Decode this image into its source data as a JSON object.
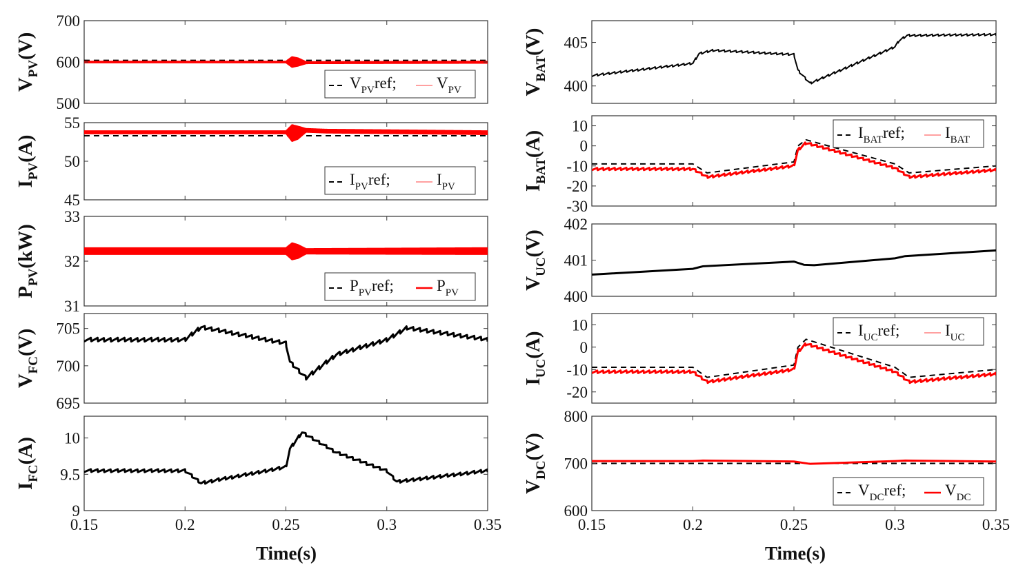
{
  "figure": {
    "x_axis_label": "Time(s)",
    "x_tick_labels": [
      "0.15",
      "0.2",
      "0.25",
      "0.3",
      "0.35"
    ],
    "x_ticks": [
      0.15,
      0.2,
      0.25,
      0.3,
      0.35
    ],
    "xlim": [
      0.15,
      0.35
    ]
  },
  "colors": {
    "reference": "#000000",
    "measured": "#ff0000",
    "signal": "#000000"
  },
  "chart_data": [
    {
      "id": "vpv",
      "type": "line",
      "column": "left",
      "ylabel": {
        "main": "V",
        "sub": "PV",
        "unit": "(V)"
      },
      "ylim": [
        500,
        700
      ],
      "yticks": [
        500,
        600,
        700
      ],
      "legend": {
        "placement": "bottom-right",
        "items": [
          {
            "main": "V",
            "sub": "PV",
            "suffix": "ref;",
            "style": "dashed",
            "color": "#000000"
          },
          {
            "main": "V",
            "sub": "PV",
            "suffix": "",
            "style": "thin",
            "color": "#ff0000"
          }
        ]
      },
      "series": [
        {
          "name": "VPVref",
          "style": "dashed",
          "color": "#000000",
          "width": 2,
          "x": [
            0.15,
            0.35
          ],
          "y": [
            604,
            604
          ]
        },
        {
          "name": "VPV",
          "style": "band",
          "color": "#ff0000",
          "x": [
            0.15,
            0.25,
            0.253,
            0.256,
            0.26,
            0.35
          ],
          "ylo": [
            597,
            597,
            586,
            589,
            595,
            596
          ],
          "yhi": [
            603,
            603,
            614,
            611,
            602,
            603
          ]
        }
      ]
    },
    {
      "id": "ipv",
      "type": "line",
      "column": "left",
      "ylabel": {
        "main": "I",
        "sub": "PV",
        "unit": "(A)"
      },
      "ylim": [
        45,
        55
      ],
      "yticks": [
        45,
        50,
        55
      ],
      "legend": {
        "placement": "bottom-right",
        "items": [
          {
            "main": "I",
            "sub": "PV",
            "suffix": "ref;",
            "style": "dashed",
            "color": "#000000"
          },
          {
            "main": "I",
            "sub": "PV",
            "suffix": "",
            "style": "thin",
            "color": "#ff0000"
          }
        ]
      },
      "series": [
        {
          "name": "IPVref",
          "style": "dashed",
          "color": "#000000",
          "width": 2,
          "x": [
            0.15,
            0.35
          ],
          "y": [
            53.3,
            53.3
          ]
        },
        {
          "name": "IPV",
          "style": "band",
          "color": "#ff0000",
          "x": [
            0.15,
            0.25,
            0.253,
            0.256,
            0.26,
            0.27,
            0.35
          ],
          "ylo": [
            53.5,
            53.5,
            52.5,
            52.8,
            53.7,
            53.6,
            53.4
          ],
          "yhi": [
            54.0,
            54.0,
            54.8,
            54.6,
            54.3,
            54.2,
            54.0
          ]
        }
      ]
    },
    {
      "id": "ppv",
      "type": "line",
      "column": "left",
      "ylabel": {
        "main": "P",
        "sub": "PV",
        "unit": "(kW)"
      },
      "ylim": [
        31,
        33
      ],
      "yticks": [
        31,
        32,
        33
      ],
      "legend": {
        "placement": "bottom-right",
        "items": [
          {
            "main": "P",
            "sub": "PV",
            "suffix": "ref;",
            "style": "dashed",
            "color": "#000000"
          },
          {
            "main": "P",
            "sub": "PV",
            "suffix": "",
            "style": "solid",
            "color": "#ff0000"
          }
        ]
      },
      "series": [
        {
          "name": "PPVref",
          "style": "dashed",
          "color": "#000000",
          "width": 2.5,
          "x": [
            0.15,
            0.35
          ],
          "y": [
            32.22,
            32.22
          ]
        },
        {
          "name": "PPV",
          "style": "band",
          "color": "#ff0000",
          "x": [
            0.15,
            0.25,
            0.253,
            0.256,
            0.26,
            0.35
          ],
          "ylo": [
            32.14,
            32.14,
            32.02,
            32.05,
            32.15,
            32.14
          ],
          "yhi": [
            32.31,
            32.31,
            32.42,
            32.38,
            32.29,
            32.31
          ]
        }
      ]
    },
    {
      "id": "vfc",
      "type": "line",
      "column": "left",
      "ylabel": {
        "main": "V",
        "sub": "FC",
        "unit": "(V)"
      },
      "ylim": [
        695,
        707
      ],
      "yticks": [
        695,
        700,
        705
      ],
      "legend": null,
      "series": [
        {
          "name": "VFC",
          "style": "ripple",
          "color": "#000000",
          "width": 3,
          "ripple": 0.25,
          "cycles": 60,
          "x": [
            0.15,
            0.2,
            0.208,
            0.25,
            0.252,
            0.26,
            0.275,
            0.3,
            0.31,
            0.35
          ],
          "y": [
            703.5,
            703.5,
            705.2,
            703.0,
            700.5,
            698.4,
            701.5,
            703.5,
            705.1,
            703.5
          ]
        }
      ]
    },
    {
      "id": "ifc",
      "type": "line",
      "column": "left",
      "ylabel": {
        "main": "I",
        "sub": "FC",
        "unit": "(A)"
      },
      "ylim": [
        9,
        10.3
      ],
      "yticks": [
        9,
        9.5,
        10
      ],
      "legend": null,
      "series": [
        {
          "name": "IFC",
          "style": "ripple",
          "color": "#000000",
          "width": 3,
          "ripple": 0.02,
          "cycles": 60,
          "x": [
            0.15,
            0.2,
            0.208,
            0.25,
            0.252,
            0.258,
            0.275,
            0.3,
            0.305,
            0.35
          ],
          "y": [
            9.55,
            9.55,
            9.38,
            9.6,
            9.85,
            10.08,
            9.8,
            9.55,
            9.4,
            9.55
          ]
        }
      ]
    },
    {
      "id": "vbat",
      "type": "line",
      "column": "right",
      "ylabel": {
        "main": "V",
        "sub": "BAT",
        "unit": "(V)"
      },
      "ylim": [
        398,
        407.5
      ],
      "yticks": [
        400,
        405
      ],
      "legend": null,
      "series": [
        {
          "name": "VBAT",
          "style": "ripple",
          "color": "#000000",
          "width": 2,
          "ripple": 0.12,
          "cycles": 70,
          "x": [
            0.15,
            0.2,
            0.203,
            0.21,
            0.25,
            0.252,
            0.258,
            0.3,
            0.302,
            0.306,
            0.35
          ],
          "y": [
            401.2,
            402.6,
            403.7,
            404.1,
            403.6,
            401.8,
            400.3,
            404.5,
            405.2,
            405.8,
            405.9
          ]
        }
      ]
    },
    {
      "id": "ibat",
      "type": "line",
      "column": "right",
      "ylabel": {
        "main": "I",
        "sub": "BAT",
        "unit": "(A)"
      },
      "ylim": [
        -30,
        15
      ],
      "yticks": [
        -30,
        -20,
        -10,
        0,
        10
      ],
      "legend": {
        "placement": "top-right",
        "items": [
          {
            "main": "I",
            "sub": "BAT",
            "suffix": "ref;",
            "style": "dashed",
            "color": "#000000"
          },
          {
            "main": "I",
            "sub": "BAT",
            "suffix": "",
            "style": "thin",
            "color": "#ff0000"
          }
        ]
      },
      "series": [
        {
          "name": "IBATref",
          "style": "dashed",
          "color": "#000000",
          "width": 2,
          "x": [
            0.15,
            0.2,
            0.207,
            0.25,
            0.252,
            0.256,
            0.3,
            0.307,
            0.35
          ],
          "y": [
            -9,
            -9,
            -13.5,
            -8,
            0,
            3,
            -9,
            -13.5,
            -10
          ]
        },
        {
          "name": "IBAT",
          "style": "ripple",
          "color": "#ff0000",
          "width": 3,
          "ripple": 0.6,
          "cycles": 70,
          "x": [
            0.15,
            0.2,
            0.207,
            0.25,
            0.252,
            0.256,
            0.3,
            0.307,
            0.35
          ],
          "y": [
            -11.5,
            -11.5,
            -15.5,
            -10,
            -2,
            1.5,
            -11,
            -15.5,
            -12
          ]
        }
      ]
    },
    {
      "id": "vuc",
      "type": "line",
      "column": "right",
      "ylabel": {
        "main": "V",
        "sub": "UC",
        "unit": "(V)"
      },
      "ylim": [
        400,
        402
      ],
      "yticks": [
        400,
        401,
        402
      ],
      "legend": null,
      "series": [
        {
          "name": "VUC",
          "style": "line",
          "color": "#000000",
          "width": 3,
          "x": [
            0.15,
            0.2,
            0.205,
            0.25,
            0.255,
            0.26,
            0.3,
            0.305,
            0.35
          ],
          "y": [
            400.6,
            400.76,
            400.83,
            400.96,
            400.87,
            400.86,
            401.05,
            401.11,
            401.27
          ]
        }
      ]
    },
    {
      "id": "iuc",
      "type": "line",
      "column": "right",
      "ylabel": {
        "main": "I",
        "sub": "UC",
        "unit": "(A)"
      },
      "ylim": [
        -25,
        15
      ],
      "yticks": [
        -20,
        -10,
        0,
        10
      ],
      "legend": {
        "placement": "top-right",
        "items": [
          {
            "main": "I",
            "sub": "UC",
            "suffix": "ref;",
            "style": "dashed",
            "color": "#000000"
          },
          {
            "main": "I",
            "sub": "UC",
            "suffix": "",
            "style": "thin",
            "color": "#ff0000"
          }
        ]
      },
      "series": [
        {
          "name": "IUCref",
          "style": "dashed",
          "color": "#000000",
          "width": 2,
          "x": [
            0.15,
            0.2,
            0.207,
            0.25,
            0.252,
            0.256,
            0.3,
            0.307,
            0.35
          ],
          "y": [
            -9,
            -9,
            -13.5,
            -8,
            0,
            3.5,
            -9,
            -13.5,
            -10
          ]
        },
        {
          "name": "IUC",
          "style": "ripple",
          "color": "#ff0000",
          "width": 3,
          "ripple": 0.6,
          "cycles": 70,
          "x": [
            0.15,
            0.2,
            0.207,
            0.25,
            0.252,
            0.256,
            0.3,
            0.307,
            0.35
          ],
          "y": [
            -11,
            -11,
            -15.5,
            -10,
            -2,
            1.5,
            -11,
            -15.5,
            -12
          ]
        }
      ]
    },
    {
      "id": "vdc",
      "type": "line",
      "column": "right",
      "ylabel": {
        "main": "V",
        "sub": "DC",
        "unit": "(V)"
      },
      "ylim": [
        600,
        800
      ],
      "yticks": [
        600,
        700,
        800
      ],
      "legend": {
        "placement": "bottom-right",
        "items": [
          {
            "main": "V",
            "sub": "DC",
            "suffix": "ref;",
            "style": "dashed",
            "color": "#000000"
          },
          {
            "main": "V",
            "sub": "DC",
            "suffix": "",
            "style": "solid",
            "color": "#ff0000"
          }
        ]
      },
      "series": [
        {
          "name": "VDCref",
          "style": "dashed",
          "color": "#000000",
          "width": 2,
          "x": [
            0.15,
            0.35
          ],
          "y": [
            700,
            700
          ]
        },
        {
          "name": "VDC",
          "style": "line",
          "color": "#ff0000",
          "width": 3,
          "x": [
            0.15,
            0.2,
            0.205,
            0.25,
            0.258,
            0.3,
            0.305,
            0.35
          ],
          "y": [
            705,
            705,
            706,
            704,
            699,
            705,
            706,
            704
          ]
        }
      ]
    }
  ]
}
